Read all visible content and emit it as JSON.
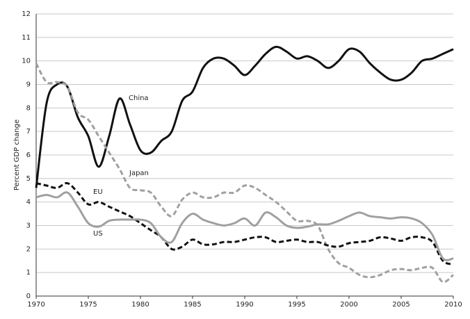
{
  "chart_data": {
    "type": "line",
    "y_label": "Percent GDP change",
    "x": [
      1970,
      1971,
      1972,
      1973,
      1974,
      1975,
      1976,
      1977,
      1978,
      1979,
      1980,
      1981,
      1982,
      1983,
      1984,
      1985,
      1986,
      1987,
      1988,
      1989,
      1990,
      1991,
      1992,
      1993,
      1994,
      1995,
      1996,
      1997,
      1998,
      1999,
      2000,
      2001,
      2002,
      2003,
      2004,
      2005,
      2006,
      2007,
      2008,
      2009,
      2010
    ],
    "series": [
      {
        "name": "China",
        "color": "#111111",
        "dashed": false,
        "values": [
          4.6,
          8.2,
          9.0,
          8.9,
          7.6,
          6.8,
          5.5,
          6.8,
          8.4,
          7.3,
          6.2,
          6.1,
          6.6,
          7.0,
          8.3,
          8.7,
          9.7,
          10.1,
          10.1,
          9.8,
          9.4,
          9.8,
          10.3,
          10.6,
          10.4,
          10.1,
          10.2,
          10.0,
          9.7,
          10.0,
          10.5,
          10.4,
          9.9,
          9.5,
          9.2,
          9.2,
          9.5,
          10.0,
          10.1,
          10.3,
          10.5
        ]
      },
      {
        "name": "Japan",
        "color": "#a0a0a0",
        "dashed": true,
        "values": [
          9.9,
          9.1,
          9.1,
          8.9,
          7.8,
          7.5,
          6.8,
          6.1,
          5.4,
          4.6,
          4.5,
          4.4,
          3.8,
          3.4,
          4.1,
          4.4,
          4.2,
          4.2,
          4.4,
          4.4,
          4.7,
          4.6,
          4.3,
          4.0,
          3.6,
          3.2,
          3.2,
          3.0,
          2.0,
          1.4,
          1.2,
          0.9,
          0.8,
          0.9,
          1.1,
          1.15,
          1.1,
          1.2,
          1.2,
          0.6,
          0.9
        ]
      },
      {
        "name": "EU",
        "color": "#111111",
        "dashed": true,
        "values": [
          4.8,
          4.7,
          4.6,
          4.8,
          4.4,
          3.9,
          4.0,
          3.8,
          3.6,
          3.4,
          3.1,
          2.8,
          2.5,
          2.0,
          2.1,
          2.4,
          2.2,
          2.2,
          2.3,
          2.3,
          2.4,
          2.5,
          2.5,
          2.3,
          2.35,
          2.4,
          2.3,
          2.3,
          2.15,
          2.1,
          2.25,
          2.3,
          2.35,
          2.5,
          2.45,
          2.35,
          2.5,
          2.5,
          2.3,
          1.5,
          1.35
        ]
      },
      {
        "name": "US",
        "color": "#a0a0a0",
        "dashed": false,
        "values": [
          4.2,
          4.3,
          4.2,
          4.4,
          3.8,
          3.1,
          2.95,
          3.2,
          3.25,
          3.25,
          3.25,
          3.1,
          2.5,
          2.3,
          3.1,
          3.5,
          3.25,
          3.1,
          3.0,
          3.1,
          3.3,
          3.0,
          3.55,
          3.35,
          3.0,
          2.9,
          2.95,
          3.05,
          3.05,
          3.2,
          3.4,
          3.55,
          3.4,
          3.35,
          3.3,
          3.35,
          3.3,
          3.1,
          2.6,
          1.6,
          1.6
        ]
      }
    ],
    "xlim": [
      1970,
      2010
    ],
    "xticks": [
      1970,
      1975,
      1980,
      1985,
      1990,
      1995,
      2000,
      2005,
      2010
    ],
    "ylim": [
      0,
      12
    ],
    "yticks": [
      0,
      1,
      2,
      3,
      4,
      5,
      6,
      7,
      8,
      9,
      10,
      11,
      12
    ],
    "grid": true
  }
}
